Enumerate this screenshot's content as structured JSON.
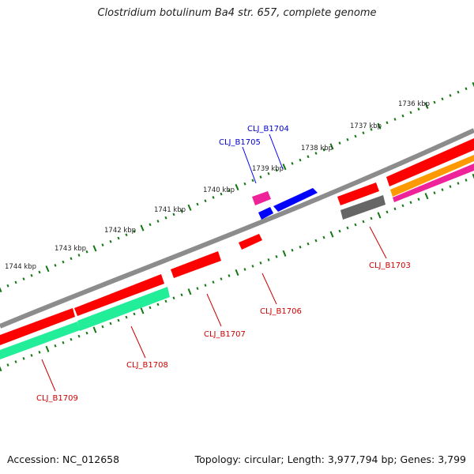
{
  "title": "Clostridium botulinum Ba4 str. 657, complete genome",
  "footer": {
    "accession": "Accession: NC_012658",
    "stats": "Topology: circular; Length: 3,977,794 bp; Genes: 3,799"
  },
  "ruler": {
    "unit": "kbp",
    "ticks": [
      {
        "label": "1736 kbp"
      },
      {
        "label": "1737 kbp"
      },
      {
        "label": "1738 kbp"
      },
      {
        "label": "1739 kbp"
      },
      {
        "label": "1740 kbp"
      },
      {
        "label": "1741 kbp"
      },
      {
        "label": "1742 kbp"
      },
      {
        "label": "1743 kbp"
      },
      {
        "label": "1744 kbp"
      }
    ]
  },
  "genes": [
    {
      "id": "CLJ_B1703",
      "label": "CLJ_B1703",
      "color": "#cc0000"
    },
    {
      "id": "CLJ_B1704",
      "label": "CLJ_B1704",
      "color": "#0000cc"
    },
    {
      "id": "CLJ_B1705",
      "label": "CLJ_B1705",
      "color": "#0000cc"
    },
    {
      "id": "CLJ_B1706",
      "label": "CLJ_B1706",
      "color": "#cc0000"
    },
    {
      "id": "CLJ_B1707",
      "label": "CLJ_B1707",
      "color": "#cc0000"
    },
    {
      "id": "CLJ_B1708",
      "label": "CLJ_B1708",
      "color": "#cc0000"
    },
    {
      "id": "CLJ_B1709",
      "label": "CLJ_B1709",
      "color": "#cc0000"
    }
  ],
  "colors": {
    "backbone": "#8c8c8c",
    "cds_red": "#ff0000",
    "cds_blue": "#0000ff",
    "cds_pink": "#ee2299",
    "cds_grey": "#666666",
    "cds_orange": "#ff9900",
    "cds_teal": "#22ee99",
    "tick_green": "#117711"
  }
}
